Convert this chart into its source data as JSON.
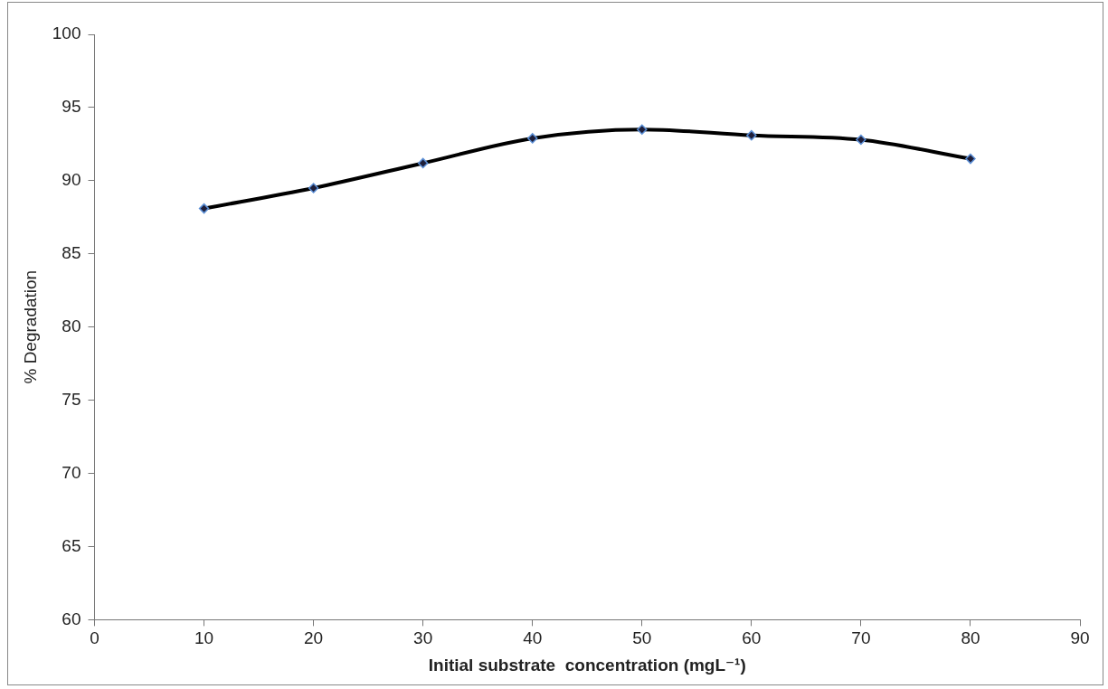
{
  "chart_data": {
    "type": "line",
    "xlabel": "Initial substrate  concentration (mgL⁻¹)",
    "ylabel": "% Degradation",
    "x": [
      10,
      20,
      30,
      40,
      50,
      60,
      70,
      80
    ],
    "series": [
      {
        "color": "#000000",
        "values": [
          88.1,
          89.5,
          91.2,
          92.9,
          93.5,
          93.1,
          92.8,
          91.5
        ]
      }
    ],
    "xlim": [
      0,
      90
    ],
    "xticks": [
      0,
      10,
      20,
      30,
      40,
      50,
      60,
      70,
      80,
      90
    ],
    "ylim": [
      60,
      100
    ],
    "yticks": [
      60,
      65,
      70,
      75,
      80,
      85,
      90,
      95,
      100
    ],
    "grid": false,
    "legend": false,
    "marker": "diamond",
    "line_style": "solid"
  }
}
